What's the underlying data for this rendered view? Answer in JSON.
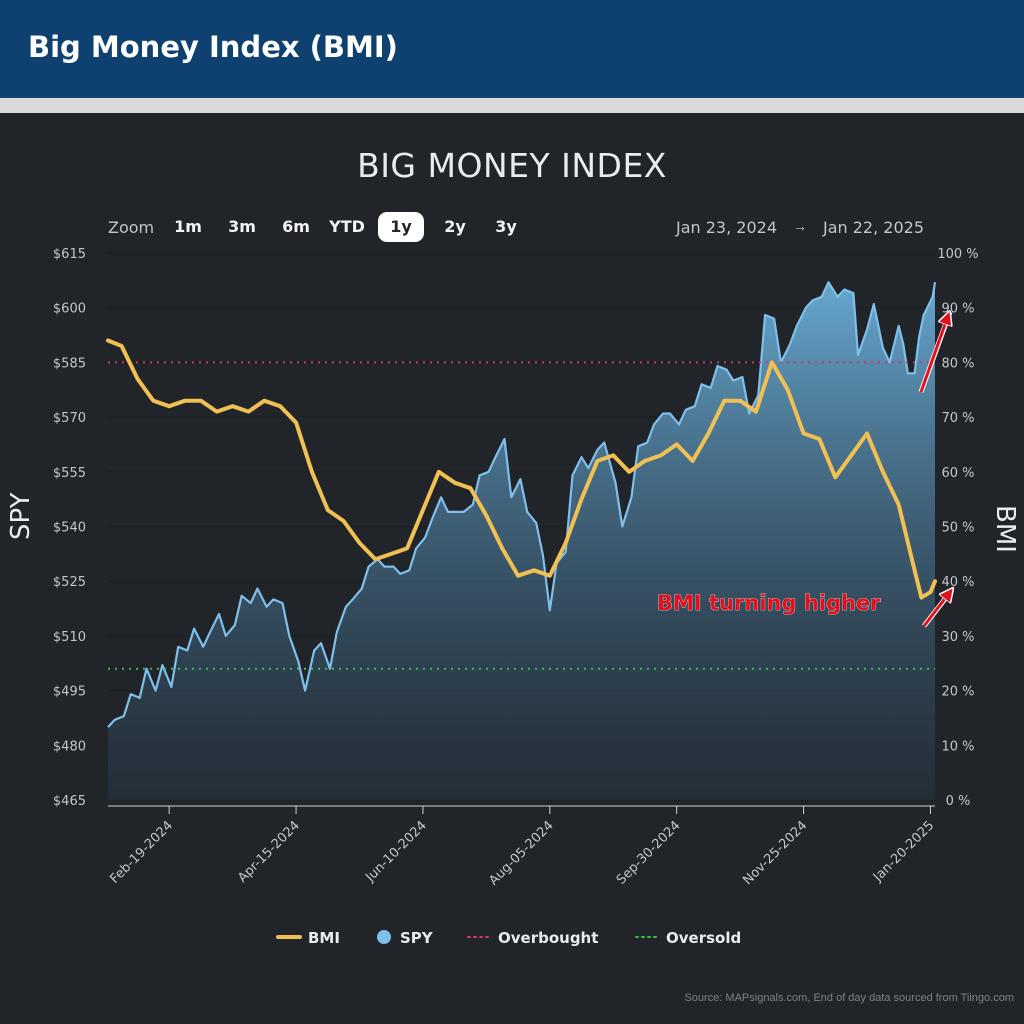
{
  "header": {
    "title": "Big Money Index (BMI)"
  },
  "zoom": {
    "label": "Zoom",
    "buttons": [
      "1m",
      "3m",
      "6m",
      "YTD",
      "1y",
      "2y",
      "3y"
    ],
    "active": "1y",
    "range_from": "Jan 23, 2024",
    "range_arrow": "→",
    "range_to": "Jan 22, 2025"
  },
  "source": "Source: MAPsignals.com, End of day data sourced from Tiingo.com",
  "colors": {
    "bmi": "#f0c052",
    "spy_line": "#7fbfea",
    "overbought": "#cc3b66",
    "oversold": "#32c24a",
    "header_bg": "#0e4170",
    "annotation": "#e0101c"
  },
  "chart_data": {
    "type": "line",
    "title": "BIG MONEY INDEX",
    "y_left_label": "SPY",
    "y_right_label": "BMI",
    "y_left_range": [
      465,
      615
    ],
    "y_left_ticks": [
      "$615",
      "$600",
      "$585",
      "$570",
      "$555",
      "$540",
      "$525",
      "$510",
      "$495",
      "$480",
      "$465"
    ],
    "y_right_range": [
      0,
      100
    ],
    "y_right_ticks": [
      "100 %",
      "90 %",
      "80 %",
      "70 %",
      "60 %",
      "50 %",
      "40 %",
      "30 %",
      "20 %",
      "10 %",
      "0 %"
    ],
    "x_range": [
      "2024-01-23",
      "2025-01-22"
    ],
    "x_ticks": [
      "Feb-19-2024",
      "Apr-15-2024",
      "Jun-10-2024",
      "Aug-05-2024",
      "Sep-30-2024",
      "Nov-25-2024",
      "Jan-20-2025"
    ],
    "reference_lines": [
      {
        "name": "Overbought",
        "value": 80
      },
      {
        "name": "Oversold",
        "value": 24
      }
    ],
    "series": [
      {
        "name": "BMI",
        "axis": "right",
        "points": [
          [
            "2024-01-23",
            84
          ],
          [
            "2024-01-29",
            83
          ],
          [
            "2024-02-05",
            77
          ],
          [
            "2024-02-12",
            73
          ],
          [
            "2024-02-19",
            72
          ],
          [
            "2024-02-26",
            73
          ],
          [
            "2024-03-04",
            73
          ],
          [
            "2024-03-11",
            71
          ],
          [
            "2024-03-18",
            72
          ],
          [
            "2024-03-25",
            71
          ],
          [
            "2024-04-01",
            73
          ],
          [
            "2024-04-08",
            72
          ],
          [
            "2024-04-15",
            69
          ],
          [
            "2024-04-22",
            60
          ],
          [
            "2024-04-29",
            53
          ],
          [
            "2024-05-06",
            51
          ],
          [
            "2024-05-13",
            47
          ],
          [
            "2024-05-20",
            44
          ],
          [
            "2024-05-27",
            45
          ],
          [
            "2024-06-03",
            46
          ],
          [
            "2024-06-10",
            53
          ],
          [
            "2024-06-17",
            60
          ],
          [
            "2024-06-24",
            58
          ],
          [
            "2024-07-01",
            57
          ],
          [
            "2024-07-08",
            52
          ],
          [
            "2024-07-15",
            46
          ],
          [
            "2024-07-22",
            41
          ],
          [
            "2024-07-29",
            42
          ],
          [
            "2024-08-05",
            41
          ],
          [
            "2024-08-12",
            47
          ],
          [
            "2024-08-19",
            55
          ],
          [
            "2024-08-26",
            62
          ],
          [
            "2024-09-02",
            63
          ],
          [
            "2024-09-09",
            60
          ],
          [
            "2024-09-16",
            62
          ],
          [
            "2024-09-23",
            63
          ],
          [
            "2024-09-30",
            65
          ],
          [
            "2024-10-07",
            62
          ],
          [
            "2024-10-14",
            67
          ],
          [
            "2024-10-21",
            73
          ],
          [
            "2024-10-28",
            73
          ],
          [
            "2024-11-04",
            71
          ],
          [
            "2024-11-11",
            80
          ],
          [
            "2024-11-18",
            75
          ],
          [
            "2024-11-25",
            67
          ],
          [
            "2024-12-02",
            66
          ],
          [
            "2024-12-09",
            59
          ],
          [
            "2024-12-16",
            63
          ],
          [
            "2024-12-23",
            67
          ],
          [
            "2024-12-30",
            60
          ],
          [
            "2025-01-06",
            54
          ],
          [
            "2025-01-13",
            42
          ],
          [
            "2025-01-16",
            37
          ],
          [
            "2025-01-20",
            38
          ],
          [
            "2025-01-22",
            40
          ]
        ]
      },
      {
        "name": "SPY",
        "axis": "left",
        "points": [
          [
            "2024-01-23",
            485
          ],
          [
            "2024-01-26",
            487
          ],
          [
            "2024-01-30",
            488
          ],
          [
            "2024-02-02",
            494
          ],
          [
            "2024-02-06",
            493
          ],
          [
            "2024-02-09",
            501
          ],
          [
            "2024-02-13",
            495
          ],
          [
            "2024-02-16",
            502
          ],
          [
            "2024-02-20",
            496
          ],
          [
            "2024-02-23",
            507
          ],
          [
            "2024-02-27",
            506
          ],
          [
            "2024-03-01",
            512
          ],
          [
            "2024-03-05",
            507
          ],
          [
            "2024-03-08",
            511
          ],
          [
            "2024-03-12",
            516
          ],
          [
            "2024-03-15",
            510
          ],
          [
            "2024-03-19",
            513
          ],
          [
            "2024-03-22",
            521
          ],
          [
            "2024-03-26",
            519
          ],
          [
            "2024-03-29",
            523
          ],
          [
            "2024-04-02",
            518
          ],
          [
            "2024-04-05",
            520
          ],
          [
            "2024-04-09",
            519
          ],
          [
            "2024-04-12",
            510
          ],
          [
            "2024-04-16",
            503
          ],
          [
            "2024-04-19",
            495
          ],
          [
            "2024-04-23",
            506
          ],
          [
            "2024-04-26",
            508
          ],
          [
            "2024-04-30",
            501
          ],
          [
            "2024-05-03",
            511
          ],
          [
            "2024-05-07",
            518
          ],
          [
            "2024-05-10",
            520
          ],
          [
            "2024-05-14",
            523
          ],
          [
            "2024-05-17",
            529
          ],
          [
            "2024-05-21",
            531
          ],
          [
            "2024-05-24",
            529
          ],
          [
            "2024-05-28",
            529
          ],
          [
            "2024-05-31",
            527
          ],
          [
            "2024-06-04",
            528
          ],
          [
            "2024-06-07",
            534
          ],
          [
            "2024-06-11",
            537
          ],
          [
            "2024-06-14",
            542
          ],
          [
            "2024-06-18",
            548
          ],
          [
            "2024-06-21",
            544
          ],
          [
            "2024-06-25",
            544
          ],
          [
            "2024-06-28",
            544
          ],
          [
            "2024-07-02",
            546
          ],
          [
            "2024-07-05",
            554
          ],
          [
            "2024-07-09",
            555
          ],
          [
            "2024-07-12",
            559
          ],
          [
            "2024-07-16",
            564
          ],
          [
            "2024-07-19",
            548
          ],
          [
            "2024-07-23",
            553
          ],
          [
            "2024-07-26",
            544
          ],
          [
            "2024-07-30",
            541
          ],
          [
            "2024-08-02",
            532
          ],
          [
            "2024-08-05",
            517
          ],
          [
            "2024-08-08",
            530
          ],
          [
            "2024-08-12",
            533
          ],
          [
            "2024-08-15",
            554
          ],
          [
            "2024-08-19",
            559
          ],
          [
            "2024-08-22",
            556
          ],
          [
            "2024-08-26",
            561
          ],
          [
            "2024-08-29",
            563
          ],
          [
            "2024-09-03",
            552
          ],
          [
            "2024-09-06",
            540
          ],
          [
            "2024-09-10",
            548
          ],
          [
            "2024-09-13",
            562
          ],
          [
            "2024-09-17",
            563
          ],
          [
            "2024-09-20",
            568
          ],
          [
            "2024-09-24",
            571
          ],
          [
            "2024-09-27",
            571
          ],
          [
            "2024-10-01",
            568
          ],
          [
            "2024-10-04",
            572
          ],
          [
            "2024-10-08",
            573
          ],
          [
            "2024-10-11",
            579
          ],
          [
            "2024-10-15",
            578
          ],
          [
            "2024-10-18",
            584
          ],
          [
            "2024-10-22",
            583
          ],
          [
            "2024-10-25",
            580
          ],
          [
            "2024-10-29",
            581
          ],
          [
            "2024-11-01",
            571
          ],
          [
            "2024-11-05",
            576
          ],
          [
            "2024-11-08",
            598
          ],
          [
            "2024-11-12",
            597
          ],
          [
            "2024-11-15",
            585
          ],
          [
            "2024-11-19",
            590
          ],
          [
            "2024-11-22",
            595
          ],
          [
            "2024-11-26",
            600
          ],
          [
            "2024-11-29",
            602
          ],
          [
            "2024-12-03",
            603
          ],
          [
            "2024-12-06",
            607
          ],
          [
            "2024-12-10",
            603
          ],
          [
            "2024-12-13",
            605
          ],
          [
            "2024-12-17",
            604
          ],
          [
            "2024-12-19",
            587
          ],
          [
            "2024-12-23",
            594
          ],
          [
            "2024-12-26",
            601
          ],
          [
            "2024-12-30",
            589
          ],
          [
            "2025-01-02",
            585
          ],
          [
            "2025-01-06",
            595
          ],
          [
            "2025-01-08",
            590
          ],
          [
            "2025-01-10",
            582
          ],
          [
            "2025-01-13",
            582
          ],
          [
            "2025-01-15",
            592
          ],
          [
            "2025-01-17",
            598
          ],
          [
            "2025-01-21",
            603
          ],
          [
            "2025-01-22",
            607
          ]
        ]
      }
    ],
    "legend": [
      "BMI",
      "SPY",
      "Overbought",
      "Oversold"
    ],
    "legend_position": "bottom",
    "annotations": [
      {
        "text": "BMI turning higher",
        "target_series": "BMI",
        "arrows": 2
      }
    ]
  }
}
